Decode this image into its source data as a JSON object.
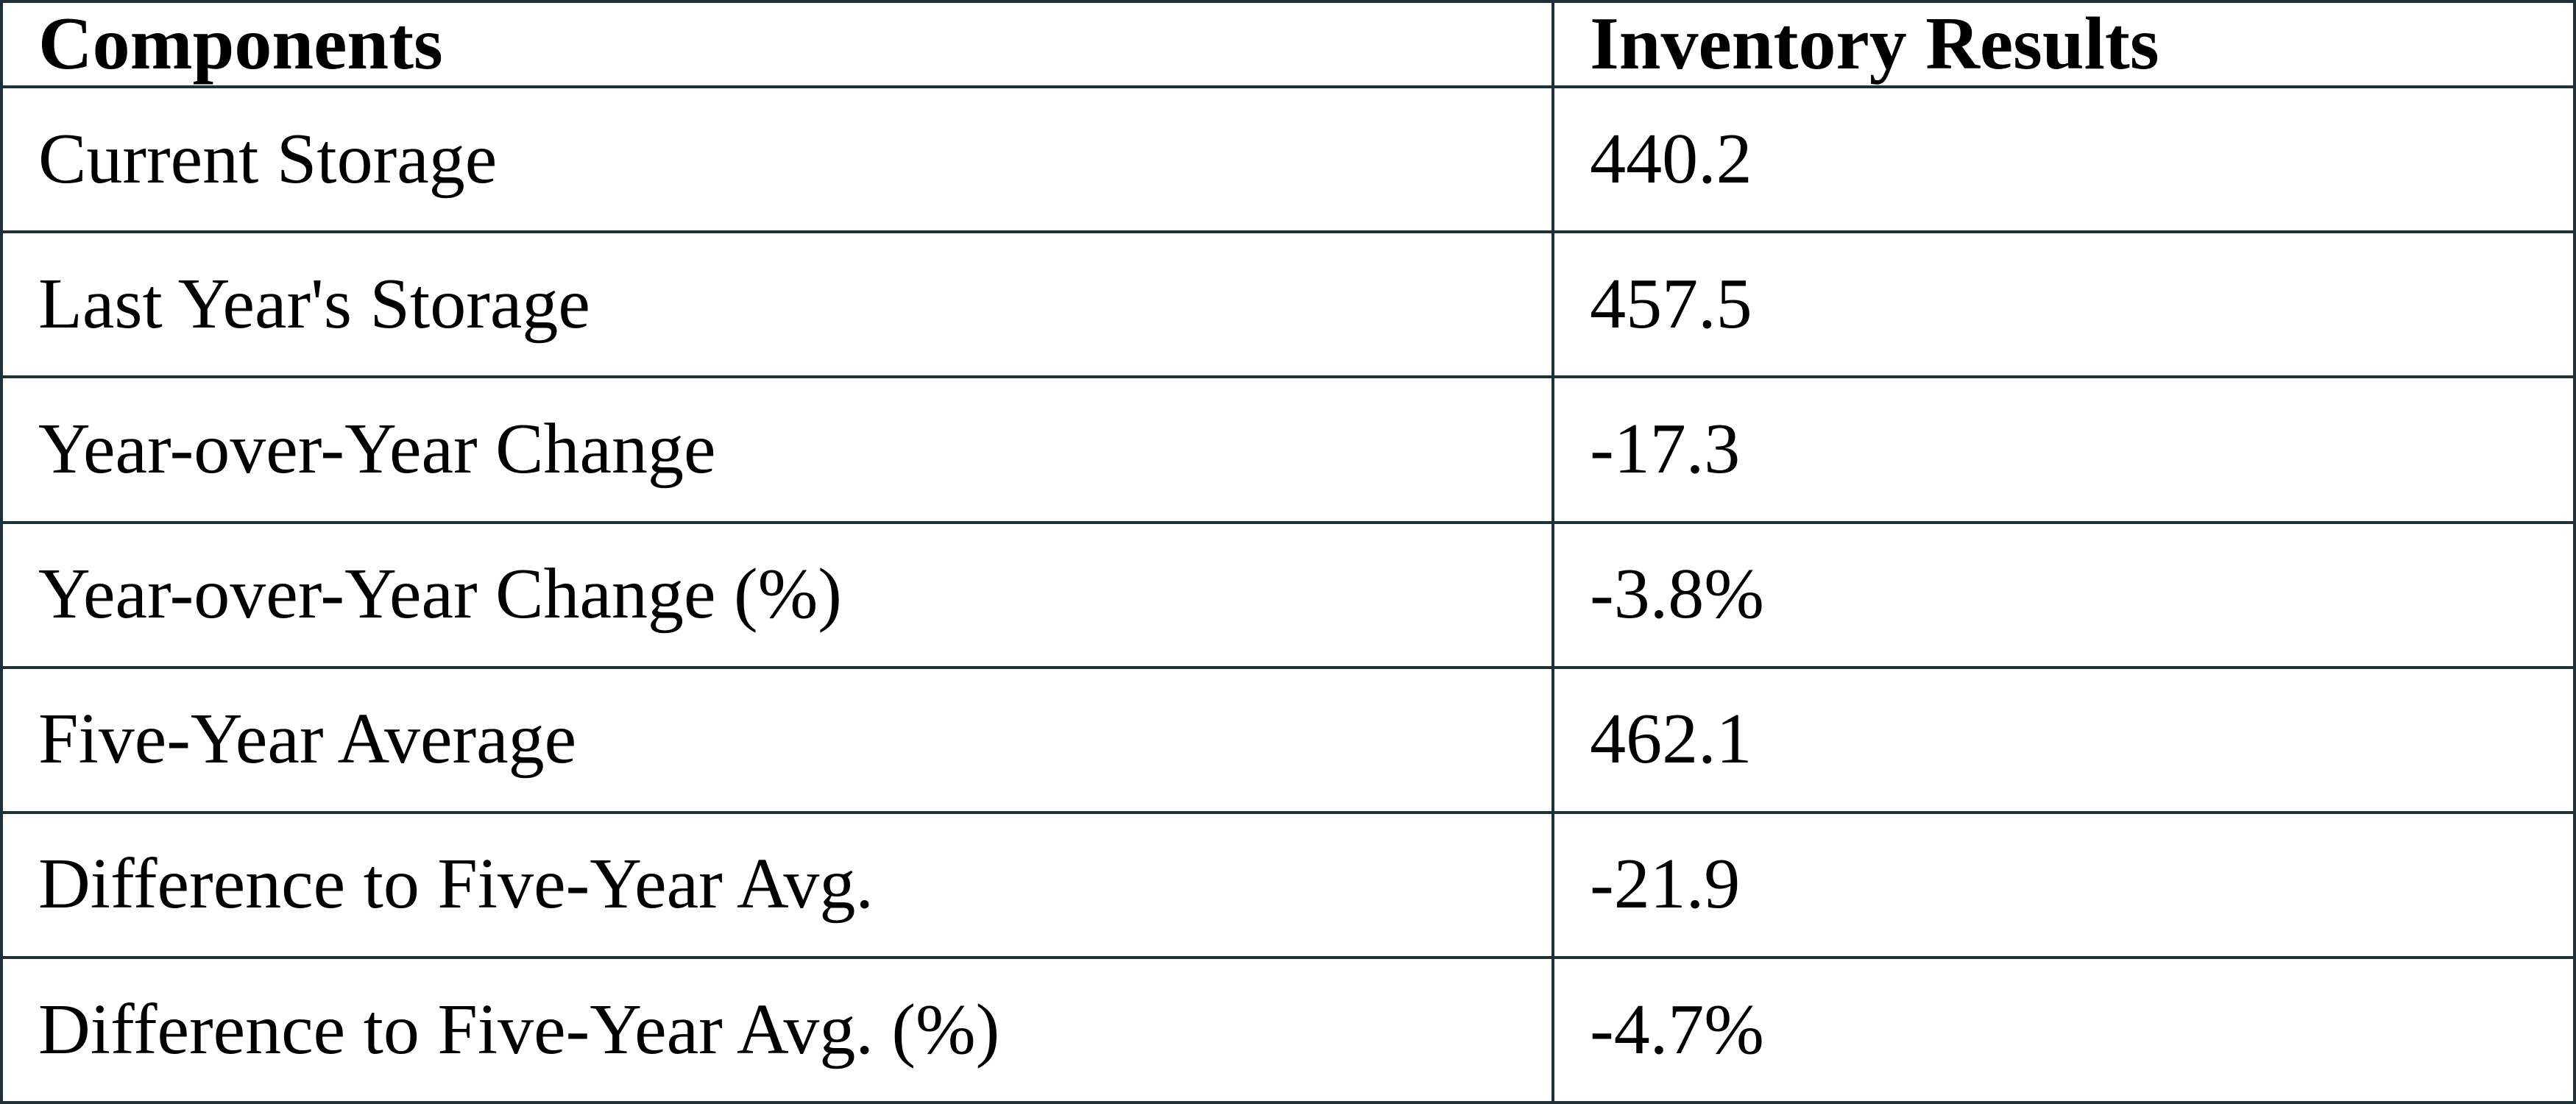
{
  "colors": {
    "border": "#1f3138",
    "text": "#000000",
    "background": "#ffffff"
  },
  "table": {
    "headers": {
      "components": "Components",
      "results": "Inventory Results"
    },
    "rows": [
      {
        "component": "Current Storage",
        "value": "440.2"
      },
      {
        "component": "Last Year's Storage",
        "value": "457.5"
      },
      {
        "component": "Year-over-Year Change",
        "value": "-17.3"
      },
      {
        "component": "Year-over-Year Change (%)",
        "value": "-3.8%"
      },
      {
        "component": "Five-Year Average",
        "value": "462.1"
      },
      {
        "component": "Difference to Five-Year Avg.",
        "value": "-21.9"
      },
      {
        "component": "Difference to Five-Year Avg. (%)",
        "value": "-4.7%"
      }
    ]
  },
  "chart_data": {
    "type": "table",
    "title": "",
    "columns": [
      "Components",
      "Inventory Results"
    ],
    "categories": [
      "Current Storage",
      "Last Year's Storage",
      "Year-over-Year Change",
      "Year-over-Year Change (%)",
      "Five-Year Average",
      "Difference to Five-Year Avg.",
      "Difference to Five-Year Avg. (%)"
    ],
    "values": [
      440.2,
      457.5,
      -17.3,
      -3.8,
      462.1,
      -21.9,
      -4.7
    ],
    "value_labels": [
      "440.2",
      "457.5",
      "-17.3",
      "-3.8%",
      "462.1",
      "-21.9",
      "-4.7%"
    ]
  }
}
